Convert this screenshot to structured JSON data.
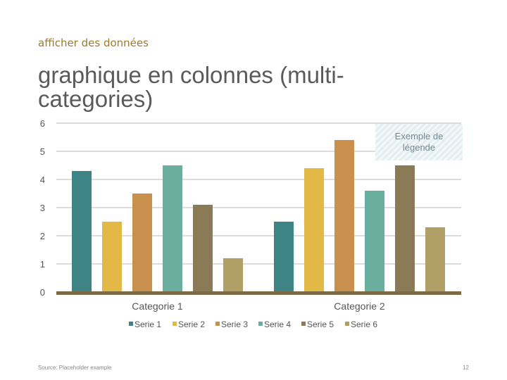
{
  "slide": {
    "kicker": "afficher des données",
    "title": "graphique en colonnes (multi-categories)",
    "callout": "Exemple de légende",
    "source": "Source: Placeholder example",
    "page_number": "12"
  },
  "colors": {
    "Serie 1": "#3e8487",
    "Serie 2": "#e2b946",
    "Serie 3": "#c98f4d",
    "Serie 4": "#6aae9f",
    "Serie 5": "#8a7a56",
    "Serie 6": "#b0a066",
    "gridline": "#dcdcdc",
    "baseline": "#7a6a45"
  },
  "chart_data": {
    "type": "bar",
    "categories": [
      "Categorie 1",
      "Categorie 2"
    ],
    "series": [
      {
        "name": "Serie 1",
        "values": [
          4.3,
          2.5
        ]
      },
      {
        "name": "Serie 2",
        "values": [
          2.5,
          4.4
        ]
      },
      {
        "name": "Serie 3",
        "values": [
          3.5,
          5.4
        ]
      },
      {
        "name": "Serie 4",
        "values": [
          4.5,
          3.6
        ]
      },
      {
        "name": "Serie 5",
        "values": [
          3.1,
          4.5
        ]
      },
      {
        "name": "Serie 6",
        "values": [
          1.2,
          2.3
        ]
      }
    ],
    "y_ticks": [
      "0",
      "1",
      "2",
      "3",
      "4",
      "5",
      "6"
    ],
    "ylim": [
      0,
      6
    ],
    "grid": true,
    "legend_position": "bottom"
  }
}
